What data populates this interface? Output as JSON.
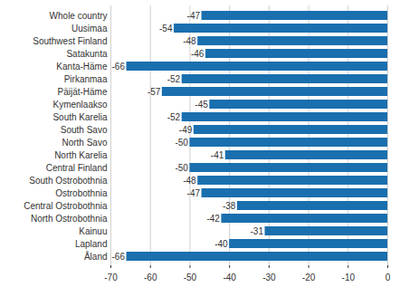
{
  "chart_data": {
    "type": "bar",
    "orientation": "horizontal",
    "categories": [
      "Whole country",
      "Uusimaa",
      "Southwest Finland",
      "Satakunta",
      "Kanta-Häme",
      "Pirkanmaa",
      "Päijät-Häme",
      "Kymenlaakso",
      "South Karelia",
      "South Savo",
      "North Savo",
      "North Karelia",
      "Central Finland",
      "South Ostrobothnia",
      "Ostrobothnia",
      "Central Ostrobothnia",
      "North Ostrobothnia",
      "Kainuu",
      "Lapland",
      "Åland"
    ],
    "values": [
      -47,
      -54,
      -48,
      -46,
      -66,
      -52,
      -57,
      -45,
      -52,
      -49,
      -50,
      -41,
      -50,
      -48,
      -47,
      -38,
      -42,
      -31,
      -40,
      -66
    ],
    "color": "#1a6fae",
    "xlim": [
      -70,
      0
    ],
    "xticks": [
      -70,
      -60,
      -50,
      -40,
      -30,
      -20,
      -10,
      0
    ],
    "grid": true,
    "data_labels": true
  }
}
